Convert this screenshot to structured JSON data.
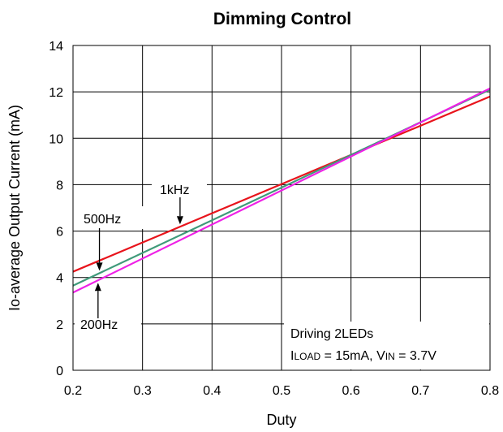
{
  "chart_data": {
    "type": "line",
    "title": "Dimming Control",
    "xlabel": "Duty",
    "ylabel": "Io-average Output Current (mA)",
    "xlim": [
      0.2,
      0.8
    ],
    "ylim": [
      0,
      14
    ],
    "xticks": [
      0.2,
      0.3,
      0.4,
      0.5,
      0.6,
      0.7,
      0.8
    ],
    "yticks": [
      0,
      2,
      4,
      6,
      8,
      10,
      12,
      14
    ],
    "xtick_labels": [
      "0.2",
      "0.3",
      "0.4",
      "0.5",
      "0.6",
      "0.7",
      "0.8"
    ],
    "ytick_labels": [
      "0",
      "2",
      "4",
      "6",
      "8",
      "10",
      "12",
      "14"
    ],
    "grid": true,
    "series": [
      {
        "name": "1kHz",
        "color": "#e8141c",
        "x": [
          0.2,
          0.8
        ],
        "y": [
          4.25,
          11.8
        ]
      },
      {
        "name": "500Hz",
        "color": "#3f9a7a",
        "x": [
          0.2,
          0.8
        ],
        "y": [
          3.65,
          12.1
        ]
      },
      {
        "name": "200Hz",
        "color": "#ee21e6",
        "x": [
          0.2,
          0.8
        ],
        "y": [
          3.35,
          12.15
        ]
      }
    ],
    "annotations": [
      {
        "id": "1khz",
        "text": "1kHz",
        "series": 0,
        "arrow_x": 0.354
      },
      {
        "id": "500hz",
        "text": "500Hz",
        "series": 1,
        "arrow_x": 0.238
      },
      {
        "id": "200hz",
        "text": "200Hz",
        "series": 2,
        "arrow_x": 0.236
      }
    ],
    "notes": {
      "line1": "Driving 2LEDs",
      "iload_main": "I",
      "iload_sub": "LOAD",
      "iload_value": " = 15mA,  V",
      "vin_sub": "IN",
      "vin_value": " = 3.7V"
    }
  }
}
